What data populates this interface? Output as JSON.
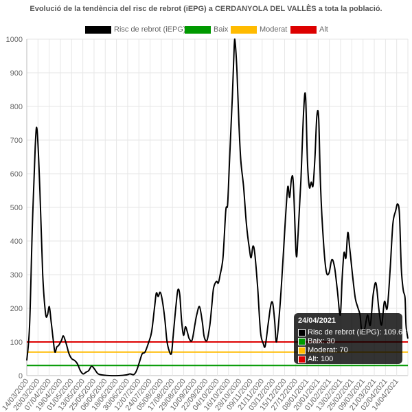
{
  "chart_data": {
    "type": "line",
    "title": "Evolució de la tendència del risc de rebrot (iEPG) a CERDANYOLA DEL VALLÈS a tota la població.",
    "xlabel": "",
    "ylabel": "",
    "ylim": [
      0,
      1000
    ],
    "y_ticks": [
      "0",
      "100",
      "200",
      "300",
      "400",
      "500",
      "600",
      "700",
      "800",
      "900",
      "1000"
    ],
    "x_tick_labels": [
      "14/03/2020",
      "26/03/2020",
      "07/04/2020",
      "19/04/2020",
      "01/05/2020",
      "13/05/2020",
      "25/05/2020",
      "06/06/2020",
      "18/06/2020",
      "30/06/2020",
      "12/07/2020",
      "24/07/2020",
      "05/08/2020",
      "17/08/2020",
      "29/08/2020",
      "10/09/2020",
      "22/09/2020",
      "04/10/2020",
      "16/10/2020",
      "28/10/2020",
      "09/11/2020",
      "21/11/2020",
      "03/12/2020",
      "15/12/2020",
      "27/12/2020",
      "08/01/2021",
      "20/01/2021",
      "01/02/2021",
      "13/02/2021",
      "25/02/2021",
      "09/03/2021",
      "21/03/2021",
      "02/04/2021",
      "14/04/2021"
    ],
    "x_start_date": "14/03/2020",
    "x_end_date": "24/04/2021",
    "grid": true,
    "legend_position": "top",
    "series": [
      {
        "name": "Risc de rebrot (iEPG)",
        "color": "#000000",
        "points": [
          [
            "14/03/2020",
            45
          ],
          [
            "17/03/2020",
            150
          ],
          [
            "20/03/2020",
            450
          ],
          [
            "23/03/2020",
            680
          ],
          [
            "25/03/2020",
            730
          ],
          [
            "28/03/2020",
            550
          ],
          [
            "31/03/2020",
            300
          ],
          [
            "03/04/2020",
            185
          ],
          [
            "05/04/2020",
            180
          ],
          [
            "07/04/2020",
            205
          ],
          [
            "09/04/2020",
            160
          ],
          [
            "11/04/2020",
            110
          ],
          [
            "13/04/2020",
            70
          ],
          [
            "15/04/2020",
            85
          ],
          [
            "17/04/2020",
            90
          ],
          [
            "20/04/2020",
            105
          ],
          [
            "22/04/2020",
            118
          ],
          [
            "25/04/2020",
            95
          ],
          [
            "28/04/2020",
            65
          ],
          [
            "01/05/2020",
            50
          ],
          [
            "04/05/2020",
            45
          ],
          [
            "07/05/2020",
            35
          ],
          [
            "10/05/2020",
            15
          ],
          [
            "13/05/2020",
            5
          ],
          [
            "16/05/2020",
            10
          ],
          [
            "19/05/2020",
            15
          ],
          [
            "22/05/2020",
            28
          ],
          [
            "25/05/2020",
            20
          ],
          [
            "28/05/2020",
            8
          ],
          [
            "31/05/2020",
            3
          ],
          [
            "10/06/2020",
            0
          ],
          [
            "20/06/2020",
            0
          ],
          [
            "28/06/2020",
            2
          ],
          [
            "02/07/2020",
            5
          ],
          [
            "06/07/2020",
            3
          ],
          [
            "09/07/2020",
            15
          ],
          [
            "12/07/2020",
            40
          ],
          [
            "15/07/2020",
            65
          ],
          [
            "18/07/2020",
            70
          ],
          [
            "22/07/2020",
            100
          ],
          [
            "25/07/2020",
            130
          ],
          [
            "28/07/2020",
            200
          ],
          [
            "30/07/2020",
            245
          ],
          [
            "01/08/2020",
            235
          ],
          [
            "03/08/2020",
            248
          ],
          [
            "05/08/2020",
            230
          ],
          [
            "08/08/2020",
            170
          ],
          [
            "10/08/2020",
            110
          ],
          [
            "12/08/2020",
            80
          ],
          [
            "15/08/2020",
            65
          ],
          [
            "17/08/2020",
            120
          ],
          [
            "20/08/2020",
            210
          ],
          [
            "22/08/2020",
            255
          ],
          [
            "24/08/2020",
            240
          ],
          [
            "26/08/2020",
            160
          ],
          [
            "28/08/2020",
            120
          ],
          [
            "30/08/2020",
            145
          ],
          [
            "01/09/2020",
            130
          ],
          [
            "03/09/2020",
            110
          ],
          [
            "06/09/2020",
            105
          ],
          [
            "09/09/2020",
            150
          ],
          [
            "11/09/2020",
            180
          ],
          [
            "14/09/2020",
            205
          ],
          [
            "17/09/2020",
            160
          ],
          [
            "19/09/2020",
            115
          ],
          [
            "22/09/2020",
            105
          ],
          [
            "25/09/2020",
            150
          ],
          [
            "27/09/2020",
            205
          ],
          [
            "29/09/2020",
            260
          ],
          [
            "02/10/2020",
            280
          ],
          [
            "04/10/2020",
            275
          ],
          [
            "06/10/2020",
            300
          ],
          [
            "09/10/2020",
            350
          ],
          [
            "12/10/2020",
            490
          ],
          [
            "14/10/2020",
            510
          ],
          [
            "16/10/2020",
            640
          ],
          [
            "19/10/2020",
            830
          ],
          [
            "21/10/2020",
            980
          ],
          [
            "22/10/2020",
            990
          ],
          [
            "24/10/2020",
            900
          ],
          [
            "26/10/2020",
            750
          ],
          [
            "28/10/2020",
            640
          ],
          [
            "31/10/2020",
            560
          ],
          [
            "03/11/2020",
            450
          ],
          [
            "06/11/2020",
            380
          ],
          [
            "08/11/2020",
            350
          ],
          [
            "10/11/2020",
            385
          ],
          [
            "12/11/2020",
            360
          ],
          [
            "15/11/2020",
            260
          ],
          [
            "18/11/2020",
            130
          ],
          [
            "21/11/2020",
            95
          ],
          [
            "23/11/2020",
            88
          ],
          [
            "26/11/2020",
            150
          ],
          [
            "29/11/2020",
            210
          ],
          [
            "01/12/2020",
            215
          ],
          [
            "03/12/2020",
            165
          ],
          [
            "05/12/2020",
            100
          ],
          [
            "08/12/2020",
            180
          ],
          [
            "11/12/2020",
            300
          ],
          [
            "14/12/2020",
            440
          ],
          [
            "17/12/2020",
            560
          ],
          [
            "19/12/2020",
            530
          ],
          [
            "21/12/2020",
            585
          ],
          [
            "23/12/2020",
            570
          ],
          [
            "26/12/2020",
            360
          ],
          [
            "28/12/2020",
            420
          ],
          [
            "31/12/2020",
            580
          ],
          [
            "03/01/2021",
            790
          ],
          [
            "05/01/2021",
            830
          ],
          [
            "07/01/2021",
            640
          ],
          [
            "09/01/2021",
            560
          ],
          [
            "11/01/2021",
            575
          ],
          [
            "13/01/2021",
            565
          ],
          [
            "15/01/2021",
            650
          ],
          [
            "17/01/2021",
            770
          ],
          [
            "19/01/2021",
            765
          ],
          [
            "21/01/2021",
            560
          ],
          [
            "24/01/2021",
            400
          ],
          [
            "27/01/2021",
            310
          ],
          [
            "30/01/2021",
            305
          ],
          [
            "02/02/2021",
            345
          ],
          [
            "05/02/2021",
            320
          ],
          [
            "08/02/2021",
            250
          ],
          [
            "11/02/2021",
            180
          ],
          [
            "13/02/2021",
            290
          ],
          [
            "15/02/2021",
            365
          ],
          [
            "17/02/2021",
            350
          ],
          [
            "19/02/2021",
            425
          ],
          [
            "21/02/2021",
            380
          ],
          [
            "24/02/2021",
            300
          ],
          [
            "27/02/2021",
            230
          ],
          [
            "02/03/2021",
            200
          ],
          [
            "04/03/2021",
            180
          ],
          [
            "06/03/2021",
            130
          ],
          [
            "09/03/2021",
            140
          ],
          [
            "12/03/2021",
            180
          ],
          [
            "15/03/2021",
            150
          ],
          [
            "18/03/2021",
            240
          ],
          [
            "21/03/2021",
            275
          ],
          [
            "24/03/2021",
            200
          ],
          [
            "27/03/2021",
            150
          ],
          [
            "30/03/2021",
            220
          ],
          [
            "02/04/2021",
            200
          ],
          [
            "05/04/2021",
            310
          ],
          [
            "08/04/2021",
            450
          ],
          [
            "11/04/2021",
            490
          ],
          [
            "13/04/2021",
            510
          ],
          [
            "15/04/2021",
            480
          ],
          [
            "17/04/2021",
            320
          ],
          [
            "19/04/2021",
            255
          ],
          [
            "21/04/2021",
            230
          ],
          [
            "22/04/2021",
            150
          ],
          [
            "24/04/2021",
            110
          ]
        ]
      },
      {
        "name": "Baix",
        "color": "#009900",
        "constant": 30
      },
      {
        "name": "Moderat",
        "color": "#ffbb00",
        "constant": 70
      },
      {
        "name": "Alt",
        "color": "#dd0000",
        "constant": 100
      }
    ],
    "tooltip": {
      "title": "24/04/2021",
      "rows": [
        {
          "text": "Risc de rebrot (iEPG): 109.63",
          "color": "#000000"
        },
        {
          "text": "Baix: 30",
          "color": "#009900"
        },
        {
          "text": "Moderat: 70",
          "color": "#ffbb00"
        },
        {
          "text": "Alt: 100",
          "color": "#dd0000"
        }
      ]
    }
  }
}
